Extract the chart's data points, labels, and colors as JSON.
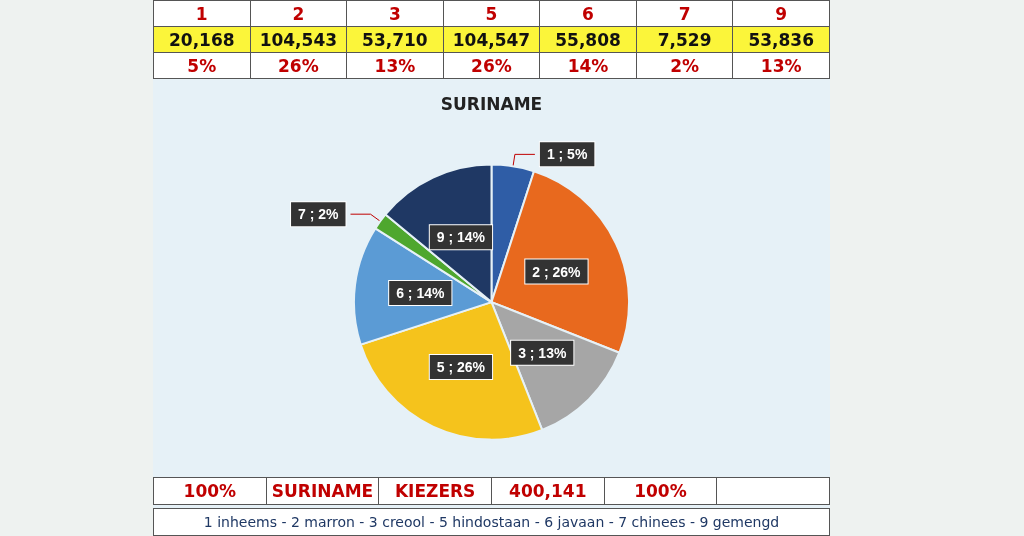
{
  "chart_data": [
    {
      "type": "other",
      "categories": [
        "1",
        "2",
        "3",
        "5",
        "6",
        "7",
        "9"
      ],
      "values": [
        20168,
        104543,
        53710,
        104547,
        55808,
        7529,
        53836
      ],
      "value_labels": [
        "20,168",
        "104,543",
        "53,710",
        "104,547",
        "55,808",
        "7,529",
        "53,836"
      ],
      "annotations": [
        "5%",
        "26%",
        "13%",
        "26%",
        "14%",
        "2%",
        "13%",
        "100%",
        "SURINAME",
        "KIEZERS",
        "400,141",
        "100%",
        "1 inheems - 2 marron - 3 creool - 5 hindostaan - 6 javaan - 7 chinees - 9 gemengd"
      ]
    },
    {
      "type": "pie",
      "title": "SURINAME",
      "categories": [
        null,
        null,
        null,
        null,
        null,
        null,
        null
      ],
      "values": [
        5,
        26,
        13,
        26,
        14,
        2,
        14
      ],
      "colors": [
        "#2f5da6",
        "#e8691e",
        "#a6a6a6",
        "#f5c31c",
        "#5b9bd5",
        "#4ea72e",
        "#1f3864"
      ],
      "value_labels": [
        "1 ; 5%",
        "2 ; 26%",
        "3 ; 13%",
        "5 ; 26%",
        "6 ; 14%",
        "7 ; 2%",
        "9 ; 14%"
      ]
    }
  ]
}
